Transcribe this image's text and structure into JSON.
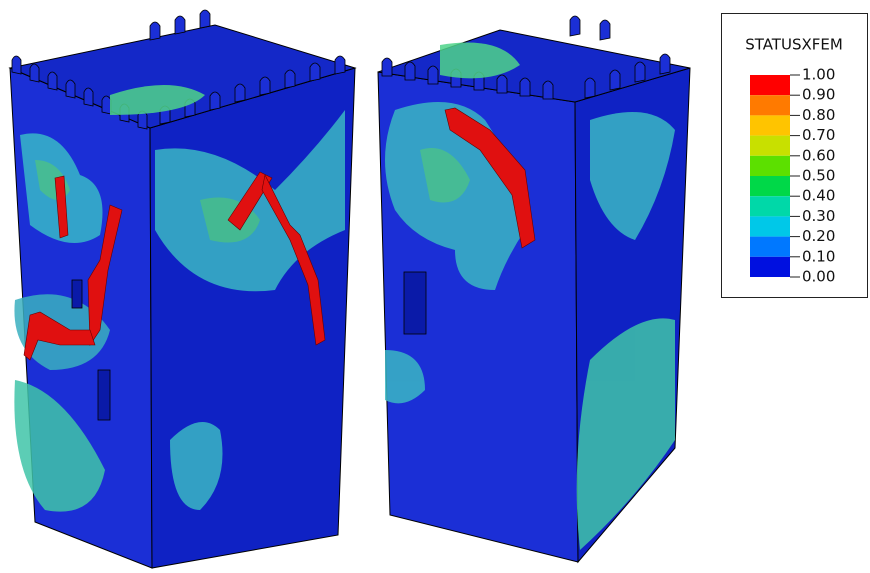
{
  "legend": {
    "title": "STATUSXFEM",
    "labels": [
      "1.00",
      "0.90",
      "0.80",
      "0.70",
      "0.60",
      "0.50",
      "0.40",
      "0.30",
      "0.20",
      "0.10",
      "0.00"
    ]
  }
}
